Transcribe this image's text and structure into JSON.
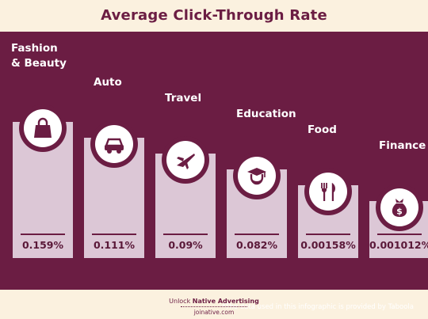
{
  "chart_data": {
    "type": "bar",
    "title": "Average Click-Through Rate",
    "categories": [
      "Fashion & Beauty",
      "Auto",
      "Travel",
      "Education",
      "Food",
      "Finance"
    ],
    "values": [
      0.159,
      0.111,
      0.09,
      0.082,
      0.00158,
      0.001012
    ],
    "value_labels": [
      "0.159%",
      "0.111%",
      "0.09%",
      "0.082%",
      "0.00158%",
      "0.001012%"
    ],
    "label_lines": [
      [
        "Fashion",
        "& Beauty"
      ],
      [
        "Auto"
      ],
      [
        "Travel"
      ],
      [
        "Education"
      ],
      [
        "Food"
      ],
      [
        "Finance"
      ]
    ],
    "icons": [
      "shopping-bag-icon",
      "car-icon",
      "airplane-icon",
      "graduate-icon",
      "fork-knife-icon",
      "money-bag-icon"
    ],
    "bar_color": "#dcc7d6",
    "panel_color": "#6b1d43",
    "background_color": "#fbf1df"
  },
  "footnote": "*The data used in this infographic is provided by Taboola",
  "footer": {
    "prefix": "Unlock ",
    "highlight": "Native Advertising",
    "site": "joinative.com"
  }
}
